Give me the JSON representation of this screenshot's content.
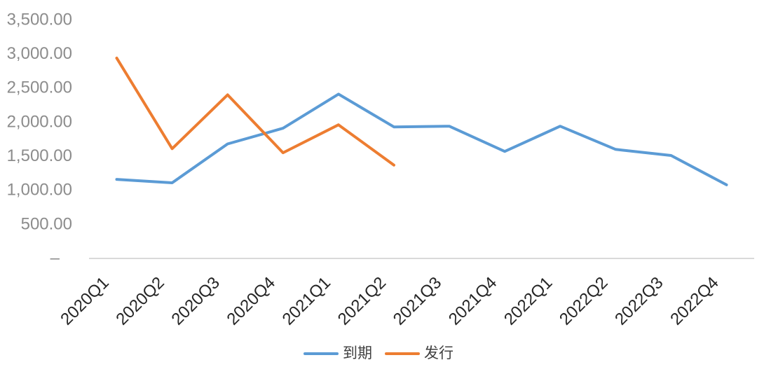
{
  "chart_data": {
    "type": "line",
    "title": "",
    "xlabel": "",
    "ylabel": "",
    "categories": [
      "2020Q1",
      "2020Q2",
      "2020Q3",
      "2020Q4",
      "2021Q1",
      "2021Q2",
      "2021Q3",
      "2021Q4",
      "2022Q1",
      "2022Q2",
      "2022Q3",
      "2022Q4"
    ],
    "series": [
      {
        "name": "到期",
        "color": "#5B9BD5",
        "values": [
          1150,
          1100,
          1670,
          1900,
          2400,
          1920,
          1930,
          1560,
          1930,
          1590,
          1500,
          1070
        ]
      },
      {
        "name": "发行",
        "color": "#ED7D31",
        "values": [
          2930,
          1600,
          2390,
          1540,
          1950,
          1360,
          null,
          null,
          null,
          null,
          null,
          null
        ]
      }
    ],
    "ylim": [
      0,
      3500
    ],
    "ytick_step": 500,
    "ytick_labels": [
      "–",
      "500.00",
      "1,000.00",
      "1,500.00",
      "2,000.00",
      "2,500.00",
      "3,000.00",
      "3,500.00"
    ],
    "grid": false,
    "legend_position": "bottom",
    "style": {
      "axis_line_color": "#D9D9D9",
      "ytick_text_color": "#8C8C8C",
      "xtick_text_color": "#262626",
      "legend_text_color": "#404040",
      "background_color": "#FFFFFF"
    }
  }
}
